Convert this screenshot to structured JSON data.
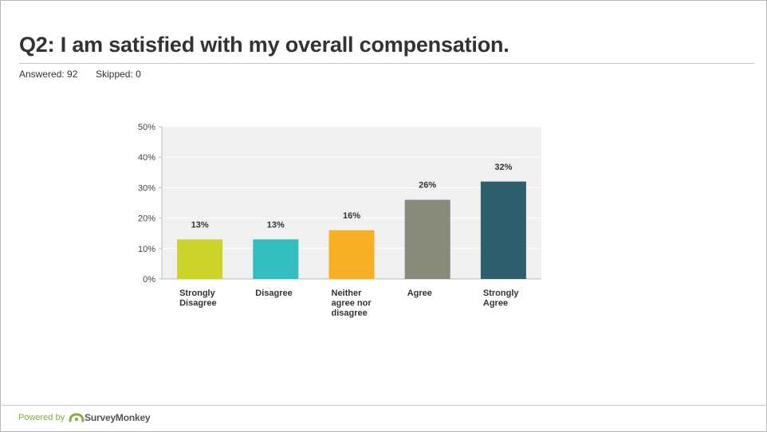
{
  "header": {
    "title": "Q2: I am satisfied with my overall compensation.",
    "answered_label": "Answered:",
    "answered_value": "92",
    "skipped_label": "Skipped:",
    "skipped_value": "0"
  },
  "footer": {
    "powered_by": "Powered by",
    "brand": "SurveyMonkey"
  },
  "chart_data": {
    "type": "bar",
    "title": "",
    "xlabel": "",
    "ylabel": "",
    "ylim": [
      0,
      50
    ],
    "yticks": [
      "0%",
      "10%",
      "20%",
      "30%",
      "40%",
      "50%"
    ],
    "grid": true,
    "categories": [
      [
        "Strongly",
        "Disagree"
      ],
      [
        "Disagree"
      ],
      [
        "Neither",
        "agree nor",
        "disagree"
      ],
      [
        "Agree"
      ],
      [
        "Strongly",
        "Agree"
      ]
    ],
    "values": [
      13,
      13,
      16,
      26,
      32
    ],
    "data_labels": [
      "13%",
      "13%",
      "16%",
      "26%",
      "32%"
    ],
    "colors": [
      "#ccd42a",
      "#33bdbf",
      "#f9af23",
      "#888a7a",
      "#2e5f6c"
    ],
    "plot_background": "#f0f0f0"
  }
}
